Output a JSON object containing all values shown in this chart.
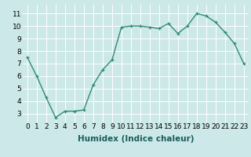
{
  "x": [
    0,
    1,
    2,
    3,
    4,
    5,
    6,
    7,
    8,
    9,
    10,
    11,
    12,
    13,
    14,
    15,
    16,
    17,
    18,
    19,
    20,
    21,
    22,
    23
  ],
  "y": [
    7.5,
    6.0,
    4.3,
    2.7,
    3.2,
    3.2,
    3.3,
    5.3,
    6.5,
    7.3,
    9.9,
    10.0,
    10.0,
    9.9,
    9.8,
    10.2,
    9.4,
    10.0,
    11.0,
    10.8,
    10.3,
    9.5,
    8.6,
    7.0
  ],
  "line_color": "#2e8b74",
  "marker": "+",
  "marker_color": "#2e8b74",
  "bg_color": "#cce8e8",
  "grid_color": "#ffffff",
  "xlabel": "Humidex (Indice chaleur)",
  "xlabel_fontsize": 7.5,
  "tick_fontsize": 6.5,
  "xlim": [
    -0.5,
    23.5
  ],
  "ylim": [
    2.3,
    11.7
  ],
  "yticks": [
    3,
    4,
    5,
    6,
    7,
    8,
    9,
    10,
    11
  ],
  "xticks": [
    0,
    1,
    2,
    3,
    4,
    5,
    6,
    7,
    8,
    9,
    10,
    11,
    12,
    13,
    14,
    15,
    16,
    17,
    18,
    19,
    20,
    21,
    22,
    23
  ]
}
